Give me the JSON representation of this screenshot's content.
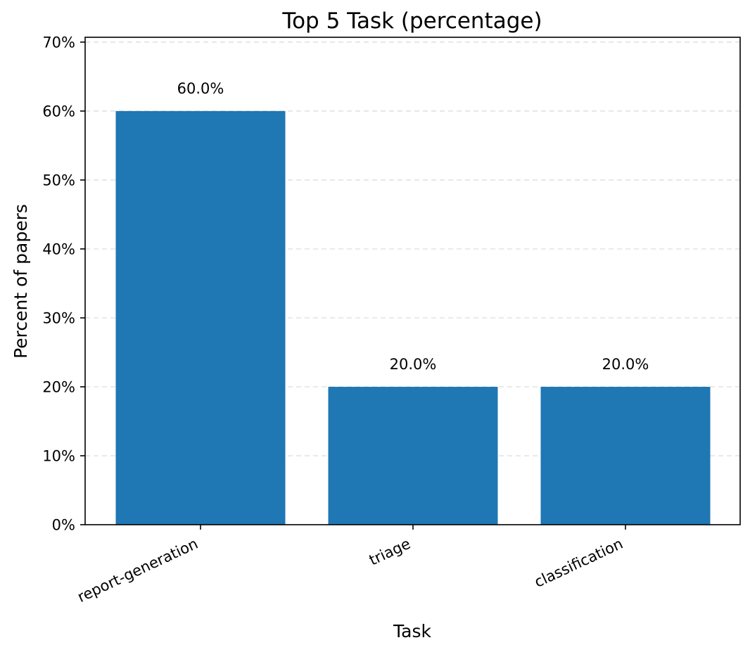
{
  "chart_data": {
    "type": "bar",
    "title": "Top 5 Task (percentage)",
    "xlabel": "Task",
    "ylabel": "Percent of papers",
    "categories": [
      "report-generation",
      "triage",
      "classification"
    ],
    "values": [
      60.0,
      20.0,
      20.0
    ],
    "value_labels": [
      "60.0%",
      "20.0%",
      "20.0%"
    ],
    "ylim": [
      0,
      70.7
    ],
    "yticks": [
      0,
      10,
      20,
      30,
      40,
      50,
      60,
      70
    ],
    "ytick_labels": [
      "0%",
      "10%",
      "20%",
      "30%",
      "40%",
      "50%",
      "60%",
      "70%"
    ],
    "grid": "y-dashed",
    "legend": "none",
    "bar_color": "#1f77b4",
    "grid_color": "#d9d9d9"
  }
}
